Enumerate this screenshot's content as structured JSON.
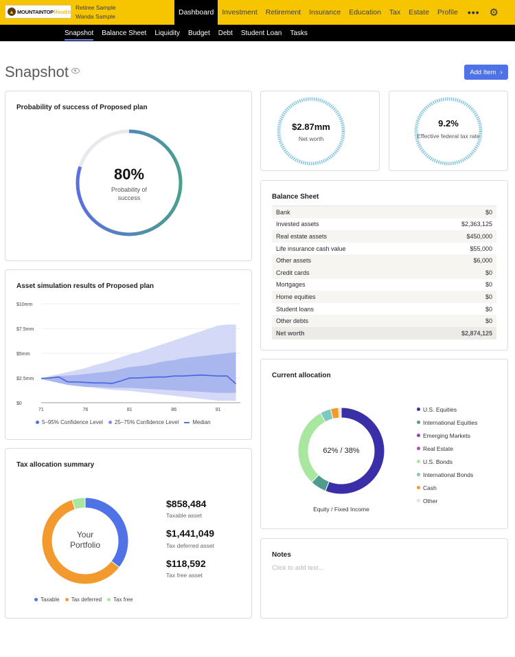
{
  "topbar": {
    "brand": "MOUNTAINTOP",
    "brand_accent": "Wealth",
    "client_primary": "Retiree Sample",
    "client_secondary": "Wanda Sample",
    "nav": [
      "Dashboard",
      "Investment",
      "Retirement",
      "Insurance",
      "Education",
      "Tax",
      "Estate",
      "Profile"
    ],
    "more": "•••",
    "colors": {
      "bar": "#f6c500",
      "active": "#000000"
    }
  },
  "subnav": [
    "Snapshot",
    "Balance Sheet",
    "Liquidity",
    "Budget",
    "Debt",
    "Student Loan",
    "Tasks"
  ],
  "header": {
    "title": "Snapshot",
    "add_button": "Add Item",
    "add_chevron": "›"
  },
  "probability": {
    "title": "Probability of success of Proposed plan",
    "value": "80%",
    "caption": "Probability of success",
    "fraction": 0.8
  },
  "net_worth": {
    "value": "$2.87mm",
    "label": "Net worth"
  },
  "tax_rate": {
    "value": "9.2%",
    "label": "Effective federal tax rate"
  },
  "balance_sheet": {
    "title": "Balance Sheet",
    "rows": [
      {
        "label": "Bank",
        "value": "$0"
      },
      {
        "label": "Invested assets",
        "value": "$2,363,125"
      },
      {
        "label": "Real estate assets",
        "value": "$450,000"
      },
      {
        "label": "Life insurance cash value",
        "value": "$55,000"
      },
      {
        "label": "Other assets",
        "value": "$6,000"
      },
      {
        "label": "Credit cards",
        "value": "$0"
      },
      {
        "label": "Mortgages",
        "value": "$0"
      },
      {
        "label": "Home equities",
        "value": "$0"
      },
      {
        "label": "Student loans",
        "value": "$0"
      },
      {
        "label": "Other debts",
        "value": "$0"
      }
    ],
    "total": {
      "label": "Net worth",
      "value": "$2,874,125"
    }
  },
  "simulation": {
    "title": "Asset simulation results of Proposed plan",
    "legend": [
      "5–95% Confidence Level",
      "25–75% Confidence Level",
      "Median"
    ]
  },
  "allocation": {
    "title": "Current allocation",
    "center": "62% / 38%",
    "caption": "Equity / Fixed Income",
    "legend": [
      {
        "label": "U.S. Equities",
        "color": "#3a2fa6"
      },
      {
        "label": "International Equities",
        "color": "#4e9b8f"
      },
      {
        "label": "Emerging Markets",
        "color": "#8e44ad"
      },
      {
        "label": "Real Estate",
        "color": "#b04fa8"
      },
      {
        "label": "U.S. Bonds",
        "color": "#a9e6a0"
      },
      {
        "label": "International Bonds",
        "color": "#7ec8c0"
      },
      {
        "label": "Cash",
        "color": "#f29a2e"
      },
      {
        "label": "Other",
        "color": "#e3e3e3"
      }
    ]
  },
  "tax_summary": {
    "title": "Tax allocation summary",
    "center_line1": "Your",
    "center_line2": "Portfolio",
    "items": [
      {
        "value": "$858,484",
        "label": "Taxable asset"
      },
      {
        "value": "$1,441,049",
        "label": "Tax deferred asset"
      },
      {
        "value": "$118,592",
        "label": "Tax free asset"
      }
    ],
    "legend": [
      {
        "label": "Taxable",
        "color": "#4f72e6"
      },
      {
        "label": "Tax deferred",
        "color": "#f29a2e"
      },
      {
        "label": "Tax free",
        "color": "#a9e6a0"
      }
    ]
  },
  "notes": {
    "title": "Notes",
    "placeholder": "Click to add text..."
  },
  "chart_data": [
    {
      "type": "area",
      "title": "Asset simulation results of Proposed plan",
      "x": [
        71,
        72,
        73,
        74,
        75,
        76,
        77,
        78,
        79,
        80,
        81,
        82,
        83,
        84,
        85,
        86,
        87,
        88,
        89,
        90,
        91,
        92,
        93
      ],
      "xticks": [
        71,
        76,
        81,
        86,
        91
      ],
      "yticks": [
        "$0",
        "$2.5mm",
        "$5mm",
        "$7.5mm",
        "$10mm"
      ],
      "ylim": [
        0,
        10
      ],
      "xlim": [
        71,
        93.5
      ],
      "series": [
        {
          "name": "5–95% Confidence Level",
          "upper": [
            2.5,
            2.7,
            2.9,
            3.1,
            3.3,
            3.5,
            3.8,
            4.0,
            4.3,
            4.6,
            4.9,
            5.1,
            5.4,
            5.7,
            6.0,
            6.3,
            6.6,
            6.9,
            7.2,
            7.5,
            7.8,
            7.9,
            7.9
          ],
          "lower": [
            2.4,
            2.2,
            2.0,
            1.8,
            1.7,
            1.6,
            1.5,
            1.4,
            1.3,
            1.25,
            1.2,
            1.1,
            1.0,
            0.9,
            0.8,
            0.7,
            0.6,
            0.5,
            0.4,
            0.3,
            0.2,
            0.2,
            0.2
          ]
        },
        {
          "name": "25–75% Confidence Level",
          "upper": [
            2.45,
            2.6,
            2.7,
            2.75,
            2.8,
            2.9,
            3.0,
            3.1,
            3.2,
            3.4,
            3.6,
            3.7,
            3.8,
            4.0,
            4.2,
            4.3,
            4.5,
            4.6,
            4.7,
            4.8,
            4.9,
            5.0,
            5.1
          ],
          "lower": [
            2.4,
            2.2,
            2.0,
            1.8,
            1.7,
            1.6,
            1.6,
            1.55,
            1.5,
            1.5,
            1.5,
            1.45,
            1.4,
            1.35,
            1.3,
            1.25,
            1.2,
            1.15,
            1.1,
            1.05,
            1.0,
            1.0,
            1.0
          ]
        },
        {
          "name": "Median",
          "values": [
            2.45,
            2.5,
            2.6,
            2.1,
            2.1,
            2.05,
            2.0,
            2.0,
            1.95,
            2.2,
            2.5,
            2.5,
            2.55,
            2.6,
            2.6,
            2.7,
            2.7,
            2.75,
            2.8,
            2.75,
            2.7,
            2.7,
            1.9
          ]
        }
      ]
    },
    {
      "type": "pie",
      "title": "Current allocation",
      "labels": [
        "U.S. Equities",
        "International Equities",
        "U.S. Bonds",
        "International Bonds",
        "Cash",
        "Other"
      ],
      "values": [
        56,
        6,
        30,
        4,
        3,
        1
      ]
    },
    {
      "type": "pie",
      "title": "Tax allocation summary",
      "labels": [
        "Taxable",
        "Tax deferred",
        "Tax free"
      ],
      "values": [
        858484,
        1441049,
        118592
      ]
    }
  ]
}
